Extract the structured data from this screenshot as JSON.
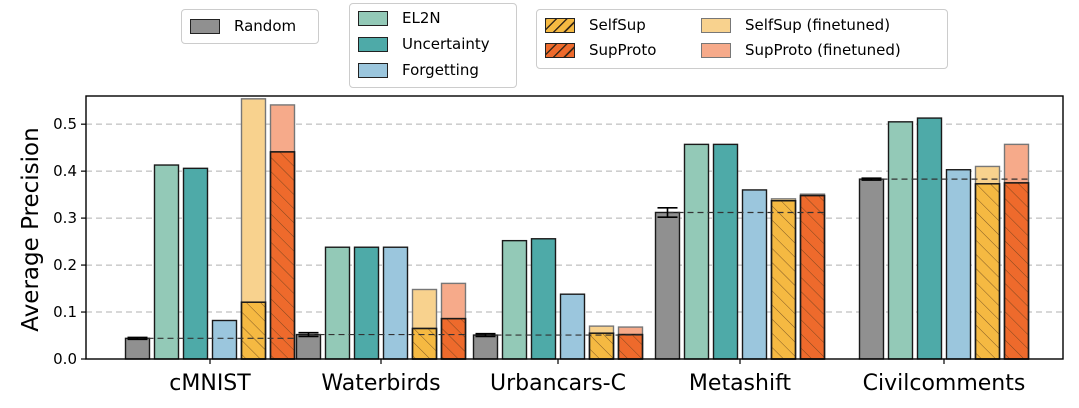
{
  "chart_data": {
    "type": "bar",
    "ylabel": "Average Precision",
    "ylim": [
      0,
      0.56
    ],
    "yticks": [
      0.0,
      0.1,
      0.2,
      0.3,
      0.4,
      0.5
    ],
    "grid": "horizontal-dashed",
    "categories": [
      "cMNIST",
      "Waterbirds",
      "Urbancars-C",
      "Metashift",
      "Civilcomments"
    ],
    "random_baseline": [
      0.044,
      0.052,
      0.051,
      0.312,
      0.383
    ],
    "random_error": [
      0.002,
      0.004,
      0.003,
      0.01,
      0.002
    ],
    "series": [
      {
        "name": "Random",
        "color": "#909090",
        "values": [
          0.044,
          0.052,
          0.051,
          0.312,
          0.383
        ]
      },
      {
        "name": "EL2N",
        "color": "#93c9b7",
        "values": [
          0.413,
          0.238,
          0.252,
          0.457,
          0.505
        ]
      },
      {
        "name": "Uncertainty",
        "color": "#4eaaa8",
        "values": [
          0.406,
          0.238,
          0.256,
          0.457,
          0.513
        ]
      },
      {
        "name": "Forgetting",
        "color": "#9bc6dd",
        "values": [
          0.082,
          0.238,
          0.138,
          0.36,
          0.403
        ]
      },
      {
        "name": "SelfSup",
        "color": "#f5b942",
        "hatch": true,
        "values": [
          0.121,
          0.065,
          0.055,
          0.337,
          0.373
        ]
      },
      {
        "name": "SupProto",
        "color": "#ee6a2c",
        "hatch": true,
        "values": [
          0.441,
          0.086,
          0.052,
          0.348,
          0.375
        ]
      },
      {
        "name": "SelfSup (finetuned)",
        "color": "#f8d28e",
        "values": [
          0.554,
          0.148,
          0.07,
          0.341,
          0.41
        ]
      },
      {
        "name": "SupProto (finetuned)",
        "color": "#f6aa8a",
        "values": [
          0.541,
          0.161,
          0.068,
          0.351,
          0.457
        ]
      }
    ],
    "legend_placement": "top-center"
  }
}
